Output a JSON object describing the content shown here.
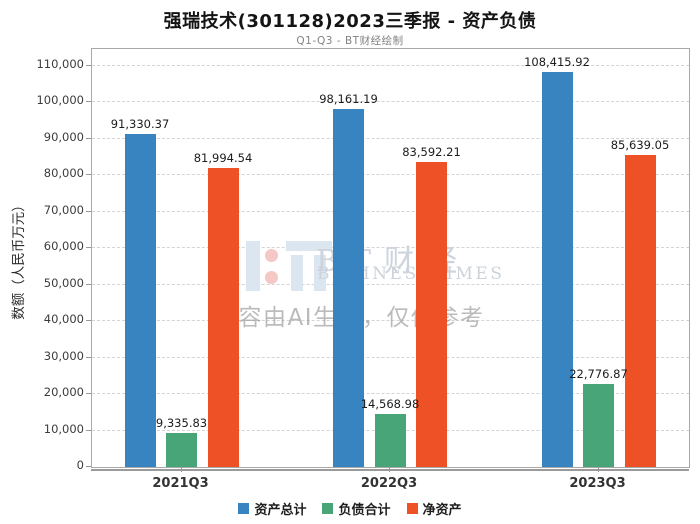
{
  "title": "强瑞技术(301128)2023三季报 - 资产负债",
  "subtitle": "Q1-Q3 - BT财经绘制",
  "watermark": {
    "logo_text": "BT财经",
    "logo_subtext": "BUSINESSTIMES",
    "ai_note": "内容由AI生成，仅供参考"
  },
  "chart_data": {
    "type": "bar",
    "title": "强瑞技术(301128)2023三季报 - 资产负债",
    "subtitle": "Q1-Q3 - BT财经绘制",
    "categories": [
      "2021Q3",
      "2022Q3",
      "2023Q3"
    ],
    "series": [
      {
        "name": "资产总计",
        "color": "#3784c1",
        "values": [
          91330.37,
          98161.19,
          108415.92
        ],
        "labels": [
          "91,330.37",
          "98,161.19",
          "108,415.92"
        ]
      },
      {
        "name": "负债合计",
        "color": "#48a578",
        "values": [
          9335.83,
          14568.98,
          22776.87
        ],
        "labels": [
          "9,335.83",
          "14,568.98",
          "22,776.87"
        ]
      },
      {
        "name": "净资产",
        "color": "#ee5126",
        "values": [
          81994.54,
          83592.21,
          85639.05
        ],
        "labels": [
          "81,994.54",
          "83,592.21",
          "85,639.05"
        ]
      }
    ],
    "xlabel": "",
    "ylabel": "数额（人民币万元）",
    "ylim": [
      0,
      110000
    ],
    "ytick_step": 10000,
    "y_tick_labels": [
      "0",
      "10,000",
      "20,000",
      "30,000",
      "40,000",
      "50,000",
      "60,000",
      "70,000",
      "80,000",
      "90,000",
      "100,000",
      "110,000"
    ],
    "grid": "horizontal-dashed",
    "legend_position": "bottom"
  }
}
